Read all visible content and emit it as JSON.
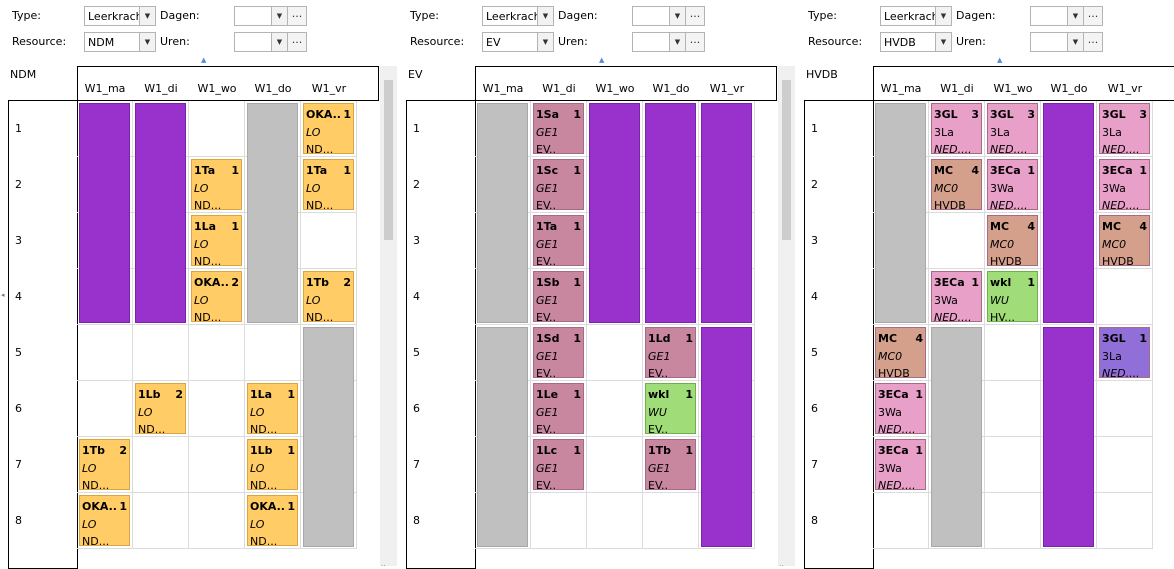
{
  "filters": {
    "type_label": "Type:",
    "resource_label": "Resource:",
    "dagen_label": "Dagen:",
    "uren_label": "Uren:",
    "ellipsis": "...",
    "ellipsis_short": "..",
    "edge_arrow": "◂"
  },
  "days": [
    "W1_ma",
    "W1_di",
    "W1_wo",
    "W1_do",
    "W1_vr"
  ],
  "hours": [
    "1",
    "2",
    "3",
    "4",
    "5",
    "6",
    "7",
    "8"
  ],
  "colors": {
    "purple": "#9932cc",
    "grey": "#c0c0c0",
    "yellow": "#ffcc66",
    "mauve": "#c8879f",
    "pink": "#e8a0c8",
    "brown": "#d4a08c",
    "green": "#a0dc78",
    "violet": "#9070d8"
  },
  "panels": [
    {
      "type_value": "Leerkracht",
      "resource_value": "NDM",
      "title": "NDM",
      "blocks": [
        {
          "day": 0,
          "from": 0,
          "to": 3,
          "color": "purple"
        },
        {
          "day": 1,
          "from": 0,
          "to": 3,
          "color": "purple"
        },
        {
          "day": 3,
          "from": 0,
          "to": 3,
          "color": "grey"
        },
        {
          "day": 4,
          "from": 4,
          "to": 7,
          "color": "grey"
        }
      ],
      "cards": [
        {
          "day": 4,
          "hour": 0,
          "code": "OKA..",
          "num": "1",
          "sub": "LO",
          "who": "ND...",
          "color": "yellow"
        },
        {
          "day": 2,
          "hour": 1,
          "code": "1Ta",
          "num": "1",
          "sub": "LO",
          "who": "ND...",
          "color": "yellow"
        },
        {
          "day": 4,
          "hour": 1,
          "code": "1Ta",
          "num": "1",
          "sub": "LO",
          "who": "ND...",
          "color": "yellow"
        },
        {
          "day": 2,
          "hour": 2,
          "code": "1La",
          "num": "1",
          "sub": "LO",
          "who": "ND...",
          "color": "yellow"
        },
        {
          "day": 2,
          "hour": 3,
          "code": "OKA..",
          "num": "2",
          "sub": "LO",
          "who": "ND...",
          "color": "yellow"
        },
        {
          "day": 4,
          "hour": 3,
          "code": "1Tb",
          "num": "2",
          "sub": "LO",
          "who": "ND...",
          "color": "yellow"
        },
        {
          "day": 1,
          "hour": 5,
          "code": "1Lb",
          "num": "2",
          "sub": "LO",
          "who": "ND...",
          "color": "yellow"
        },
        {
          "day": 3,
          "hour": 5,
          "code": "1La",
          "num": "1",
          "sub": "LO",
          "who": "ND...",
          "color": "yellow"
        },
        {
          "day": 0,
          "hour": 6,
          "code": "1Tb",
          "num": "2",
          "sub": "LO",
          "who": "ND...",
          "color": "yellow"
        },
        {
          "day": 3,
          "hour": 6,
          "code": "1Lb",
          "num": "1",
          "sub": "LO",
          "who": "ND...",
          "color": "yellow"
        },
        {
          "day": 0,
          "hour": 7,
          "code": "OKA..",
          "num": "1",
          "sub": "LO",
          "who": "ND...",
          "color": "yellow"
        },
        {
          "day": 3,
          "hour": 7,
          "code": "OKA..",
          "num": "1",
          "sub": "LO",
          "who": "ND...",
          "color": "yellow"
        }
      ]
    },
    {
      "type_value": "Leerkrach",
      "resource_value": "EV",
      "title": "EV",
      "blocks": [
        {
          "day": 0,
          "from": 0,
          "to": 3,
          "color": "grey"
        },
        {
          "day": 0,
          "from": 4,
          "to": 7,
          "color": "grey"
        },
        {
          "day": 2,
          "from": 0,
          "to": 3,
          "color": "purple"
        },
        {
          "day": 3,
          "from": 0,
          "to": 3,
          "color": "purple"
        },
        {
          "day": 4,
          "from": 0,
          "to": 3,
          "color": "purple"
        },
        {
          "day": 4,
          "from": 4,
          "to": 7,
          "color": "purple"
        }
      ],
      "cards": [
        {
          "day": 1,
          "hour": 0,
          "code": "1Sa",
          "num": "1",
          "sub": "GE1",
          "who": "EV..",
          "color": "mauve"
        },
        {
          "day": 1,
          "hour": 1,
          "code": "1Sc",
          "num": "1",
          "sub": "GE1",
          "who": "EV..",
          "color": "mauve"
        },
        {
          "day": 1,
          "hour": 2,
          "code": "1Ta",
          "num": "1",
          "sub": "GE1",
          "who": "EV..",
          "color": "mauve"
        },
        {
          "day": 1,
          "hour": 3,
          "code": "1Sb",
          "num": "1",
          "sub": "GE1",
          "who": "EV..",
          "color": "mauve"
        },
        {
          "day": 1,
          "hour": 4,
          "code": "1Sd",
          "num": "1",
          "sub": "GE1",
          "who": "EV..",
          "color": "mauve"
        },
        {
          "day": 3,
          "hour": 4,
          "code": "1Ld",
          "num": "1",
          "sub": "GE1",
          "who": "EV..",
          "color": "mauve"
        },
        {
          "day": 1,
          "hour": 5,
          "code": "1Le",
          "num": "1",
          "sub": "GE1",
          "who": "EV..",
          "color": "mauve"
        },
        {
          "day": 3,
          "hour": 5,
          "code": "wkl",
          "num": "1",
          "sub": "WU",
          "who": "EV..",
          "color": "green"
        },
        {
          "day": 1,
          "hour": 6,
          "code": "1Lc",
          "num": "1",
          "sub": "GE1",
          "who": "EV..",
          "color": "mauve"
        },
        {
          "day": 3,
          "hour": 6,
          "code": "1Tb",
          "num": "1",
          "sub": "GE1",
          "who": "EV..",
          "color": "mauve"
        }
      ]
    },
    {
      "type_value": "Leerkrach",
      "resource_value": "HVDB",
      "title": "HVDB",
      "blocks": [
        {
          "day": 0,
          "from": 0,
          "to": 3,
          "color": "grey"
        },
        {
          "day": 1,
          "from": 4,
          "to": 7,
          "color": "grey"
        },
        {
          "day": 3,
          "from": 0,
          "to": 3,
          "color": "purple"
        },
        {
          "day": 3,
          "from": 4,
          "to": 7,
          "color": "purple"
        }
      ],
      "cards": [
        {
          "day": 1,
          "hour": 0,
          "code": "3GL",
          "num": "3",
          "sub": "3La",
          "who": "NED....",
          "color": "pink",
          "italicWho": true
        },
        {
          "day": 2,
          "hour": 0,
          "code": "3GL",
          "num": "3",
          "sub": "3La",
          "who": "NED....",
          "color": "pink",
          "italicWho": true
        },
        {
          "day": 4,
          "hour": 0,
          "code": "3GL",
          "num": "3",
          "sub": "3La",
          "who": "NED....",
          "color": "pink",
          "italicWho": true
        },
        {
          "day": 1,
          "hour": 1,
          "code": "MC",
          "num": "4",
          "sub": "MC0",
          "who": "HVDB",
          "color": "brown",
          "italicSub": true
        },
        {
          "day": 2,
          "hour": 1,
          "code": "3ECa",
          "num": "1",
          "sub": "3Wa",
          "who": "NED....",
          "color": "pink",
          "italicWho": true
        },
        {
          "day": 4,
          "hour": 1,
          "code": "3ECa",
          "num": "1",
          "sub": "3Wa",
          "who": "NED....",
          "color": "pink",
          "italicWho": true
        },
        {
          "day": 2,
          "hour": 2,
          "code": "MC",
          "num": "4",
          "sub": "MC0",
          "who": "HVDB",
          "color": "brown",
          "italicSub": true
        },
        {
          "day": 4,
          "hour": 2,
          "code": "MC",
          "num": "4",
          "sub": "MC0",
          "who": "HVDB",
          "color": "brown",
          "italicSub": true
        },
        {
          "day": 1,
          "hour": 3,
          "code": "3ECa",
          "num": "1",
          "sub": "3Wa",
          "who": "NED....",
          "color": "pink",
          "italicWho": true
        },
        {
          "day": 2,
          "hour": 3,
          "code": "wkl",
          "num": "1",
          "sub": "WU",
          "who": "HV...",
          "color": "green",
          "italicSub": true
        },
        {
          "day": 0,
          "hour": 4,
          "code": "MC",
          "num": "4",
          "sub": "MC0",
          "who": "HVDB",
          "color": "brown",
          "italicSub": true
        },
        {
          "day": 4,
          "hour": 4,
          "code": "3GL",
          "num": "1",
          "sub": "3La",
          "who": "NED....",
          "color": "violet",
          "italicWho": true
        },
        {
          "day": 0,
          "hour": 5,
          "code": "3ECa",
          "num": "1",
          "sub": "3Wa",
          "who": "NED....",
          "color": "pink",
          "italicWho": true
        },
        {
          "day": 0,
          "hour": 6,
          "code": "3ECa",
          "num": "1",
          "sub": "3Wa",
          "who": "NED....",
          "color": "pink",
          "italicWho": true
        }
      ]
    }
  ]
}
